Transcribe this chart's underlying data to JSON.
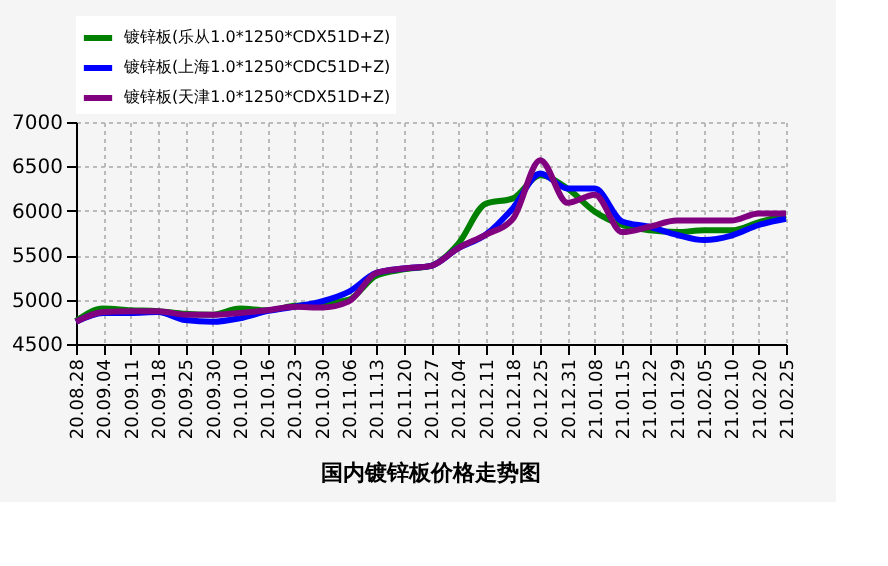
{
  "chart_data": {
    "type": "line",
    "title": "国内镀锌板价格走势图",
    "categories": [
      "20.08.28",
      "20.09.04",
      "20.09.11",
      "20.09.18",
      "20.09.25",
      "20.09.30",
      "20.10.10",
      "20.10.16",
      "20.10.23",
      "20.10.30",
      "20.11.06",
      "20.11.13",
      "20.11.20",
      "20.11.27",
      "20.12.04",
      "20.12.11",
      "20.12.18",
      "20.12.25",
      "20.12.31",
      "21.01.08",
      "21.01.15",
      "21.01.22",
      "21.01.29",
      "21.02.05",
      "21.02.10",
      "21.02.20",
      "21.02.25"
    ],
    "series": [
      {
        "name": "镀锌板(乐从1.0*1250*CDX51D+Z)",
        "color": "#008000",
        "values": [
          4760,
          4900,
          4880,
          4870,
          4840,
          4830,
          4900,
          4880,
          4930,
          4950,
          5000,
          5270,
          5340,
          5380,
          5630,
          6080,
          6140,
          6400,
          6250,
          5990,
          5840,
          5780,
          5760,
          5780,
          5780,
          5870,
          5950
        ]
      },
      {
        "name": "镀锌板(上海1.0*1250*CDC51D+Z)",
        "color": "#0000ff",
        "values": [
          4750,
          4850,
          4850,
          4860,
          4770,
          4750,
          4790,
          4870,
          4920,
          4980,
          5090,
          5300,
          5350,
          5380,
          5580,
          5730,
          6030,
          6420,
          6250,
          6250,
          5880,
          5820,
          5730,
          5670,
          5720,
          5840,
          5910
        ]
      },
      {
        "name": "镀锌板(天津1.0*1250*CDX51D+Z)",
        "color": "#800080",
        "values": [
          4750,
          4860,
          4870,
          4870,
          4830,
          4830,
          4850,
          4880,
          4920,
          4910,
          4980,
          5300,
          5350,
          5380,
          5580,
          5730,
          5910,
          6570,
          6090,
          6180,
          5760,
          5820,
          5890,
          5890,
          5890,
          5970,
          5970
        ]
      }
    ],
    "ylim": [
      4500,
      7000
    ],
    "yticks": [
      4500,
      5000,
      5500,
      6000,
      6500,
      7000
    ],
    "grid": true,
    "legend": "top",
    "line_style": "solid",
    "marker": "none"
  }
}
